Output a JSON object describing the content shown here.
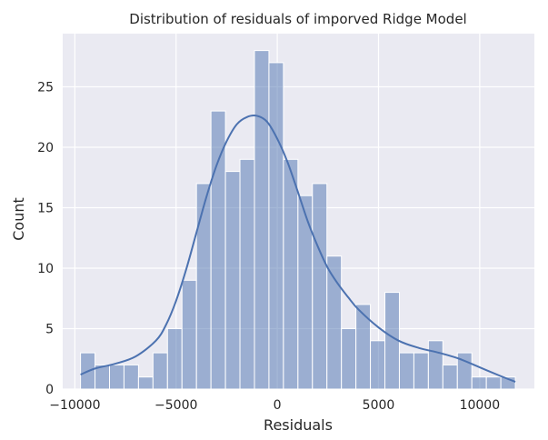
{
  "chart_data": {
    "type": "bar",
    "subtype": "histogram-with-kde",
    "title": "Distribution of residuals of imporved Ridge Model",
    "xlabel": "Residuals",
    "ylabel": "Count",
    "xlim": [
      -10600,
      12700
    ],
    "ylim": [
      0,
      29.4
    ],
    "xticks": [
      -10000,
      -5000,
      0,
      5000,
      10000
    ],
    "xtick_labels": [
      "−10000",
      "−5000",
      "0",
      "5000",
      "10000"
    ],
    "yticks": [
      0,
      5,
      10,
      15,
      20,
      25
    ],
    "ytick_labels": [
      "0",
      "5",
      "10",
      "15",
      "20",
      "25"
    ],
    "bin_start": -9720,
    "bin_width": 716,
    "values": [
      3,
      2,
      2,
      2,
      1,
      3,
      5,
      9,
      17,
      23,
      18,
      19,
      28,
      27,
      19,
      16,
      17,
      11,
      5,
      7,
      4,
      8,
      3,
      3,
      4,
      2,
      3,
      1,
      1,
      1
    ],
    "kde_x": [
      -9720,
      -9000,
      -8000,
      -7000,
      -6000,
      -5500,
      -5000,
      -4500,
      -4000,
      -3500,
      -3000,
      -2500,
      -2000,
      -1500,
      -1000,
      -500,
      0,
      500,
      1000,
      1500,
      2000,
      2500,
      3000,
      3500,
      4000,
      5000,
      6000,
      7000,
      8000,
      9000,
      10000,
      11000,
      11760
    ],
    "kde_y": [
      1.2,
      1.7,
      2.1,
      2.7,
      4.0,
      5.3,
      7.3,
      9.9,
      12.9,
      15.9,
      18.5,
      20.5,
      21.9,
      22.5,
      22.6,
      22.1,
      20.7,
      18.8,
      16.4,
      13.9,
      11.8,
      10.0,
      8.7,
      7.6,
      6.6,
      5.1,
      4.0,
      3.4,
      3.0,
      2.5,
      1.8,
      1.1,
      0.6
    ],
    "colors": {
      "background": "#eaeaf2",
      "grid": "#ffffff",
      "bar_fill": "#4c72b0",
      "bar_opacity": "0.5",
      "kde_line": "#4c72b0",
      "text": "#262626"
    },
    "grid": true,
    "legend": "none"
  }
}
